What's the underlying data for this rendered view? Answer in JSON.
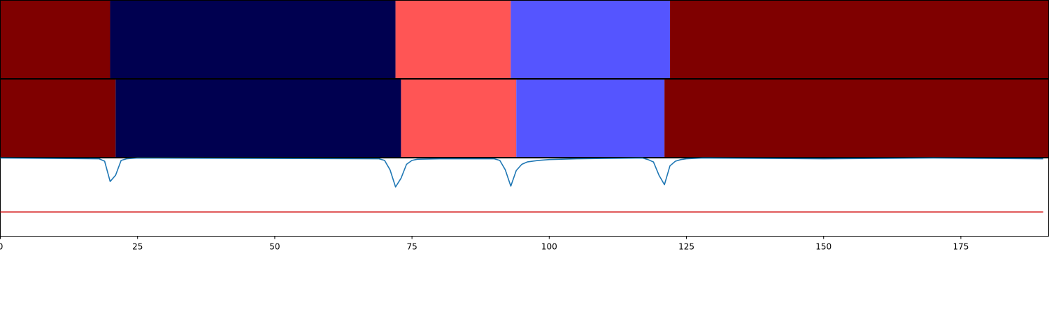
{
  "chart_data": [
    {
      "type": "heatmap",
      "panel": "top-segmentation-strip",
      "xlim": [
        0,
        191
      ],
      "segments": [
        {
          "start": 0,
          "end": 20,
          "color": "#7f0000"
        },
        {
          "start": 20,
          "end": 72,
          "color": "#000050"
        },
        {
          "start": 72,
          "end": 93,
          "color": "#ff5555"
        },
        {
          "start": 93,
          "end": 122,
          "color": "#5555ff"
        },
        {
          "start": 122,
          "end": 191,
          "color": "#7f0000"
        }
      ]
    },
    {
      "type": "heatmap",
      "panel": "middle-segmentation-strip",
      "xlim": [
        0,
        191
      ],
      "segments": [
        {
          "start": 0,
          "end": 21,
          "color": "#7f0000"
        },
        {
          "start": 21,
          "end": 73,
          "color": "#000050"
        },
        {
          "start": 73,
          "end": 94,
          "color": "#ff5555"
        },
        {
          "start": 94,
          "end": 121,
          "color": "#5555ff"
        },
        {
          "start": 121,
          "end": 191,
          "color": "#7f0000"
        }
      ]
    },
    {
      "type": "line",
      "panel": "bottom-score-plot",
      "xlim": [
        0,
        191
      ],
      "ylim": [
        0,
        1
      ],
      "xticks": [
        0,
        25,
        50,
        75,
        100,
        125,
        150,
        175
      ],
      "grid": false,
      "series": [
        {
          "color": "#1f77b4",
          "x": [
            0,
            18,
            19,
            20,
            21,
            22,
            23,
            25,
            69,
            70,
            71,
            72,
            73,
            74,
            75,
            76,
            80,
            90,
            91,
            92,
            93,
            94,
            95,
            96,
            98,
            100,
            105,
            110,
            117,
            118,
            119,
            120,
            121,
            122,
            123,
            124,
            125,
            128,
            150,
            170,
            190
          ],
          "y": [
            1.0,
            0.99,
            0.96,
            0.7,
            0.78,
            0.97,
            0.99,
            1.0,
            0.99,
            0.97,
            0.85,
            0.63,
            0.74,
            0.92,
            0.97,
            0.985,
            0.99,
            0.99,
            0.97,
            0.85,
            0.64,
            0.84,
            0.92,
            0.95,
            0.97,
            0.98,
            0.99,
            0.995,
            1.0,
            0.98,
            0.95,
            0.78,
            0.66,
            0.9,
            0.96,
            0.98,
            0.99,
            1.0,
            0.99,
            1.0,
            0.99
          ]
        },
        {
          "color": "#d62728",
          "x": [
            0,
            190
          ],
          "y": [
            0.31,
            0.31
          ]
        }
      ]
    }
  ],
  "colors": {
    "dark_red": "#7f0000",
    "navy": "#000050",
    "light_red": "#ff5555",
    "light_blue": "#5555ff",
    "line_blue": "#1f77b4",
    "line_red": "#d62728"
  }
}
